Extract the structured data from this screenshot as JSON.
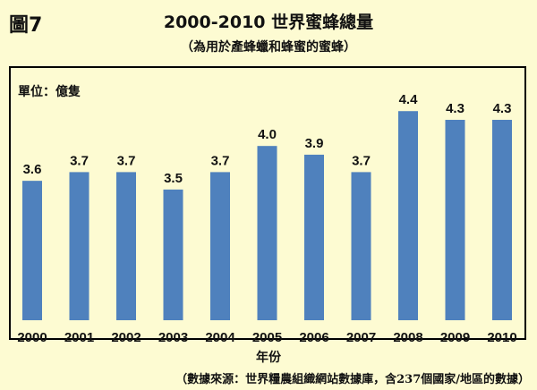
{
  "figure_label": "圖7",
  "chart_data": {
    "type": "bar",
    "title": "2000-2010  世界蜜蜂總量",
    "subtitle": "（為用於產蜂蠟和蜂蜜的蜜蜂）",
    "unit_label": "單位：億隻",
    "xlabel": "年份",
    "categories": [
      "2000",
      "2001",
      "2002",
      "2003",
      "2004",
      "2005",
      "2006",
      "2007",
      "2008",
      "2009",
      "2010"
    ],
    "values": [
      3.6,
      3.7,
      3.7,
      3.5,
      3.7,
      4.0,
      3.9,
      3.7,
      4.4,
      4.3,
      4.3
    ],
    "value_labels": [
      "3.6",
      "3.7",
      "3.7",
      "3.5",
      "3.7",
      "4.0",
      "3.9",
      "3.7",
      "4.4",
      "4.3",
      "4.3"
    ],
    "ylim": [
      2.0,
      4.7
    ],
    "grid": false,
    "bar_color": "#4f81bd",
    "source_note": "（數據來源：世界糧農組織網站數據庫，含237個國家/地區的數據）"
  }
}
